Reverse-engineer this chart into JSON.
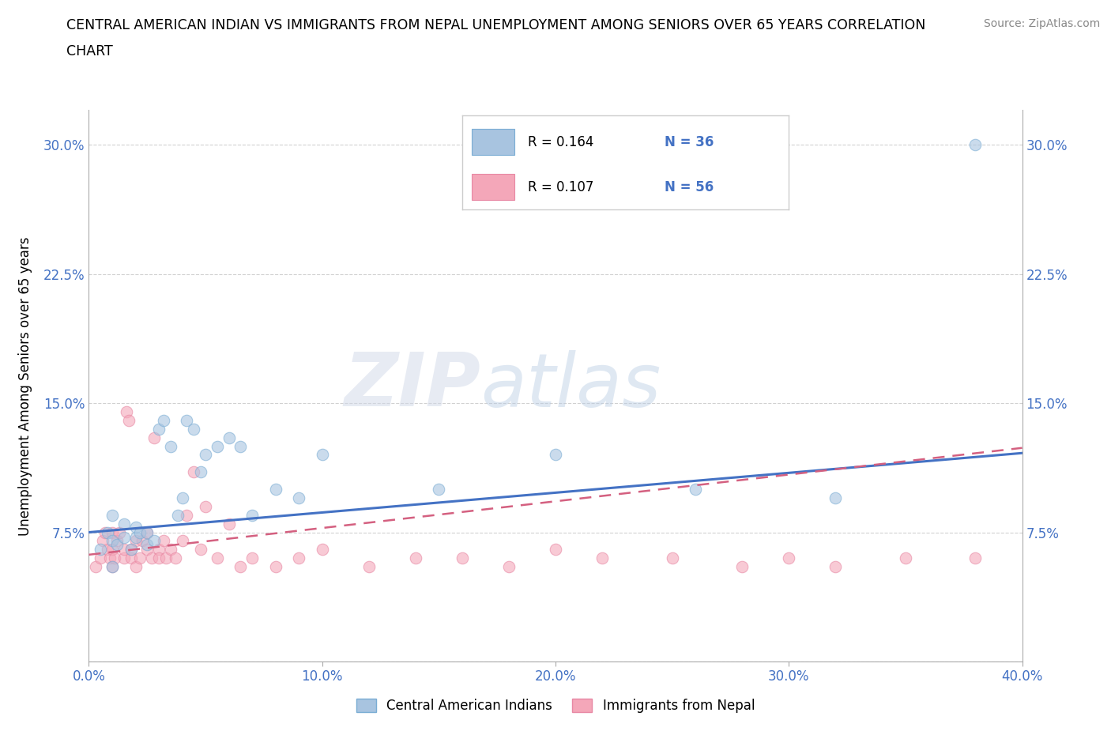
{
  "title_line1": "CENTRAL AMERICAN INDIAN VS IMMIGRANTS FROM NEPAL UNEMPLOYMENT AMONG SENIORS OVER 65 YEARS CORRELATION",
  "title_line2": "CHART",
  "source_text": "Source: ZipAtlas.com",
  "ylabel": "Unemployment Among Seniors over 65 years",
  "xlim": [
    0.0,
    0.4
  ],
  "ylim": [
    0.0,
    0.32
  ],
  "x_ticks": [
    0.0,
    0.1,
    0.2,
    0.3,
    0.4
  ],
  "x_tick_labels": [
    "0.0%",
    "10.0%",
    "20.0%",
    "30.0%",
    "40.0%"
  ],
  "y_ticks": [
    0.075,
    0.15,
    0.225,
    0.3
  ],
  "y_tick_labels": [
    "7.5%",
    "15.0%",
    "22.5%",
    "30.0%"
  ],
  "grid_color": "#cccccc",
  "background_color": "#ffffff",
  "watermark_zip": "ZIP",
  "watermark_atlas": "atlas",
  "legend_label1": "Central American Indians",
  "legend_label2": "Immigrants from Nepal",
  "color_blue": "#a8c4e0",
  "color_blue_edge": "#7aadd4",
  "color_pink": "#f4a7b9",
  "color_pink_edge": "#e888a4",
  "line_blue": "#4472c4",
  "line_pink": "#d46080",
  "tick_color": "#4472c4",
  "blue_intercept": 0.075,
  "blue_slope": 0.115,
  "pink_intercept": 0.062,
  "pink_slope": 0.155,
  "blue_x": [
    0.005,
    0.008,
    0.01,
    0.01,
    0.01,
    0.012,
    0.015,
    0.015,
    0.018,
    0.02,
    0.02,
    0.022,
    0.025,
    0.025,
    0.028,
    0.03,
    0.032,
    0.035,
    0.038,
    0.04,
    0.042,
    0.045,
    0.048,
    0.05,
    0.055,
    0.06,
    0.065,
    0.07,
    0.08,
    0.09,
    0.1,
    0.15,
    0.2,
    0.26,
    0.32,
    0.38
  ],
  "blue_y": [
    0.065,
    0.075,
    0.055,
    0.07,
    0.085,
    0.068,
    0.072,
    0.08,
    0.065,
    0.072,
    0.078,
    0.075,
    0.068,
    0.075,
    0.07,
    0.135,
    0.14,
    0.125,
    0.085,
    0.095,
    0.14,
    0.135,
    0.11,
    0.12,
    0.125,
    0.13,
    0.125,
    0.085,
    0.1,
    0.095,
    0.12,
    0.1,
    0.12,
    0.1,
    0.095,
    0.3
  ],
  "pink_x": [
    0.003,
    0.005,
    0.006,
    0.007,
    0.008,
    0.009,
    0.01,
    0.01,
    0.01,
    0.011,
    0.012,
    0.013,
    0.015,
    0.015,
    0.016,
    0.017,
    0.018,
    0.018,
    0.02,
    0.02,
    0.022,
    0.023,
    0.025,
    0.025,
    0.027,
    0.028,
    0.03,
    0.03,
    0.032,
    0.033,
    0.035,
    0.037,
    0.04,
    0.042,
    0.045,
    0.048,
    0.05,
    0.055,
    0.06,
    0.065,
    0.07,
    0.08,
    0.09,
    0.1,
    0.12,
    0.14,
    0.16,
    0.18,
    0.2,
    0.22,
    0.25,
    0.28,
    0.3,
    0.32,
    0.35,
    0.38
  ],
  "pink_y": [
    0.055,
    0.06,
    0.07,
    0.075,
    0.065,
    0.06,
    0.055,
    0.065,
    0.075,
    0.06,
    0.07,
    0.075,
    0.06,
    0.065,
    0.145,
    0.14,
    0.06,
    0.065,
    0.055,
    0.07,
    0.06,
    0.07,
    0.075,
    0.065,
    0.06,
    0.13,
    0.065,
    0.06,
    0.07,
    0.06,
    0.065,
    0.06,
    0.07,
    0.085,
    0.11,
    0.065,
    0.09,
    0.06,
    0.08,
    0.055,
    0.06,
    0.055,
    0.06,
    0.065,
    0.055,
    0.06,
    0.06,
    0.055,
    0.065,
    0.06,
    0.06,
    0.055,
    0.06,
    0.055,
    0.06,
    0.06
  ]
}
